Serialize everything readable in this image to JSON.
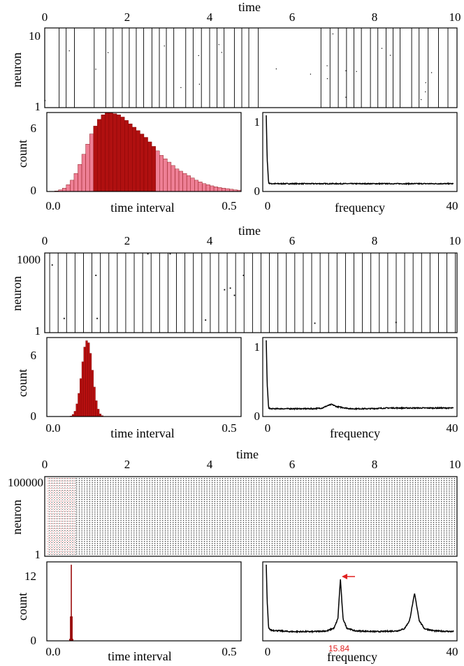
{
  "chart_data": [
    {
      "type": "scatter",
      "panel": "raster-1",
      "xlabel": "time",
      "ylabel": "neuron",
      "xlim": [
        0,
        10
      ],
      "ylim": [
        1,
        10
      ],
      "x_ticks": [
        "0",
        "2",
        "4",
        "6",
        "8",
        "10"
      ],
      "y_ticks": [
        "1",
        "10"
      ],
      "spike_times": [
        0.35,
        0.52,
        0.72,
        1.2,
        1.48,
        1.66,
        1.88,
        2.05,
        2.22,
        2.4,
        2.6,
        2.78,
        2.95,
        3.13,
        3.42,
        3.6,
        3.8,
        4.0,
        4.18,
        4.35,
        4.6,
        4.78,
        4.95,
        5.18,
        6.7,
        6.92,
        7.12,
        7.32,
        7.5,
        7.68,
        7.9,
        8.08,
        8.28,
        8.45,
        8.62,
        8.9,
        9.08,
        9.3,
        9.55,
        9.78
      ]
    },
    {
      "type": "bar",
      "panel": "isi-histogram-1",
      "xlabel": "time interval",
      "ylabel": "count",
      "xlim": [
        0,
        0.5
      ],
      "ylim": [
        0,
        7
      ],
      "x_ticks": [
        "0.0",
        "0.5"
      ],
      "y_ticks": [
        "0",
        "6"
      ],
      "bin_width": 0.01,
      "counts": [
        0.0,
        0.0,
        0.05,
        0.15,
        0.3,
        0.6,
        1.0,
        1.6,
        2.4,
        3.3,
        4.2,
        5.1,
        5.8,
        6.4,
        6.8,
        7.0,
        7.0,
        6.9,
        6.8,
        6.6,
        6.3,
        6.0,
        5.7,
        5.4,
        5.1,
        4.8,
        4.4,
        4.0,
        3.6,
        3.2,
        2.9,
        2.6,
        2.3,
        2.0,
        1.8,
        1.6,
        1.4,
        1.2,
        1.0,
        0.85,
        0.7,
        0.6,
        0.5,
        0.42,
        0.35,
        0.3,
        0.25,
        0.2,
        0.15,
        0.12
      ]
    },
    {
      "type": "line",
      "panel": "spectrum-1",
      "xlabel": "frequency",
      "xlim": [
        0,
        40
      ],
      "ylim": [
        0,
        1
      ],
      "x_ticks": [
        "0",
        "40"
      ],
      "y_ticks": [
        "0",
        "1"
      ],
      "x": [
        0,
        0.2,
        0.5,
        1,
        5,
        10,
        15,
        20,
        25,
        30,
        35,
        40
      ],
      "y": [
        1.0,
        0.4,
        0.06,
        0.05,
        0.05,
        0.05,
        0.05,
        0.05,
        0.05,
        0.05,
        0.05,
        0.05
      ]
    },
    {
      "type": "scatter",
      "panel": "raster-2",
      "xlabel": "time",
      "ylabel": "neuron",
      "xlim": [
        0,
        10
      ],
      "ylim": [
        1,
        1000
      ],
      "x_ticks": [
        "0",
        "2",
        "4",
        "6",
        "8",
        "10"
      ],
      "y_ticks": [
        "1",
        "1000"
      ],
      "period": 0.205,
      "first_spike": 0.12,
      "stray_spikes": [
        [
          0.18,
          850
        ],
        [
          0.47,
          180
        ],
        [
          1.24,
          720
        ],
        [
          1.27,
          180
        ],
        [
          2.5,
          990
        ],
        [
          3.04,
          990
        ],
        [
          3.9,
          160
        ],
        [
          4.36,
          540
        ],
        [
          4.5,
          560
        ],
        [
          4.6,
          470
        ],
        [
          4.82,
          720
        ],
        [
          6.55,
          120
        ],
        [
          8.52,
          130
        ]
      ]
    },
    {
      "type": "bar",
      "panel": "isi-histogram-2",
      "xlabel": "time interval",
      "ylabel": "count",
      "xlim": [
        0,
        0.5
      ],
      "ylim": [
        0,
        7.5
      ],
      "x_ticks": [
        "0.0",
        "0.5"
      ],
      "y_ticks": [
        "0",
        "6"
      ],
      "bin_width": 0.005,
      "bins_start": 0.06,
      "counts": [
        0.05,
        0.2,
        0.5,
        1.2,
        2.2,
        3.6,
        5.2,
        6.6,
        7.2,
        7.0,
        6.0,
        4.4,
        2.8,
        1.5,
        0.7,
        0.25,
        0.08
      ]
    },
    {
      "type": "line",
      "panel": "spectrum-2",
      "xlabel": "frequency",
      "xlim": [
        0,
        40
      ],
      "ylim": [
        0,
        1
      ],
      "x_ticks": [
        "0",
        "40"
      ],
      "y_ticks": [
        "0",
        "1"
      ],
      "x": [
        0,
        0.2,
        0.5,
        1,
        5,
        10,
        12,
        13,
        14,
        15,
        18,
        22,
        26,
        30,
        35,
        40
      ],
      "y": [
        1.0,
        0.4,
        0.06,
        0.05,
        0.05,
        0.05,
        0.06,
        0.09,
        0.11,
        0.08,
        0.05,
        0.05,
        0.06,
        0.06,
        0.06,
        0.06
      ]
    },
    {
      "type": "scatter",
      "panel": "raster-3",
      "xlabel": "time",
      "ylabel": "neuron",
      "xlim": [
        0,
        10
      ],
      "ylim": [
        1,
        100000
      ],
      "x_ticks": [
        "0",
        "2",
        "4",
        "6",
        "8",
        "10"
      ],
      "y_ticks": [
        "1",
        "100000"
      ],
      "period": 0.0632,
      "first_spike": 0.08,
      "highlight_until": 0.75,
      "highlight_color": "#e02020"
    },
    {
      "type": "bar",
      "panel": "isi-histogram-3",
      "xlabel": "time interval",
      "ylabel": "count",
      "xlim": [
        0,
        0.5
      ],
      "ylim": [
        0,
        13
      ],
      "x_ticks": [
        "0.0",
        "0.5"
      ],
      "y_ticks": [
        "0",
        "12"
      ],
      "bin_width": 0.002,
      "bins_start": 0.058,
      "counts": [
        0.3,
        4.0,
        12.5,
        4.0,
        0.3
      ]
    },
    {
      "type": "line",
      "panel": "spectrum-3",
      "xlabel": "frequency",
      "xlim": [
        0,
        40
      ],
      "ylim": [
        0,
        1
      ],
      "x_ticks": [
        "0",
        "40"
      ],
      "y_ticks": [],
      "x": [
        0,
        0.2,
        0.5,
        1,
        5,
        10,
        13,
        14.5,
        15.3,
        15.84,
        16.4,
        17.2,
        19,
        24,
        28,
        29.5,
        30.6,
        31.68,
        32.7,
        33.8,
        36,
        40
      ],
      "y": [
        1.0,
        0.5,
        0.12,
        0.09,
        0.07,
        0.07,
        0.08,
        0.12,
        0.25,
        0.8,
        0.25,
        0.12,
        0.08,
        0.07,
        0.08,
        0.11,
        0.22,
        0.6,
        0.22,
        0.11,
        0.08,
        0.07
      ],
      "annotation": {
        "text": "15.84",
        "x": 15.84,
        "color": "#e02020"
      }
    }
  ]
}
